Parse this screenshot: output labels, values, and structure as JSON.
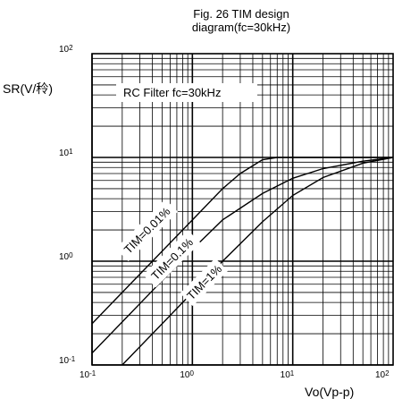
{
  "chart_data": {
    "type": "line",
    "title_lines": [
      "Fig. 26 TIM design",
      "diagram(fc=30kHz)"
    ],
    "xlabel": "Vo(Vp-p)",
    "ylabel": "SR(V/秢)",
    "annotation": "RC Filter fc=30kHz",
    "x_scale": "log",
    "y_scale": "log",
    "xlim": [
      0.1,
      100
    ],
    "ylim": [
      0.1,
      100
    ],
    "grid": true,
    "x_ticks": [
      {
        "base": "10",
        "exp": "-1"
      },
      {
        "base": "10",
        "exp": "0"
      },
      {
        "base": "10",
        "exp": "1"
      },
      {
        "base": "10",
        "exp": "2"
      }
    ],
    "y_ticks": [
      {
        "base": "10",
        "exp": "-1"
      },
      {
        "base": "10",
        "exp": "0"
      },
      {
        "base": "10",
        "exp": "1"
      },
      {
        "base": "10",
        "exp": "2"
      }
    ],
    "series": [
      {
        "name": "TIM=0.01%",
        "x": [
          0.1,
          0.2,
          0.5,
          1,
          2,
          3,
          5,
          7,
          10,
          20,
          50,
          100
        ],
        "y": [
          0.25,
          0.5,
          1.25,
          2.5,
          5,
          7,
          9.5,
          10,
          10,
          10,
          10,
          10
        ]
      },
      {
        "name": "TIM=0.1%",
        "x": [
          0.1,
          0.2,
          0.5,
          1,
          2,
          5,
          10,
          20,
          50,
          100
        ],
        "y": [
          0.13,
          0.26,
          0.65,
          1.3,
          2.5,
          4.5,
          6.3,
          7.8,
          9.2,
          10
        ]
      },
      {
        "name": "TIM=1%",
        "x": [
          0.2,
          0.5,
          1,
          2,
          5,
          10,
          20,
          50,
          100
        ],
        "y": [
          0.1,
          0.25,
          0.5,
          1,
          2.4,
          4.3,
          6.4,
          8.8,
          10
        ]
      }
    ]
  }
}
